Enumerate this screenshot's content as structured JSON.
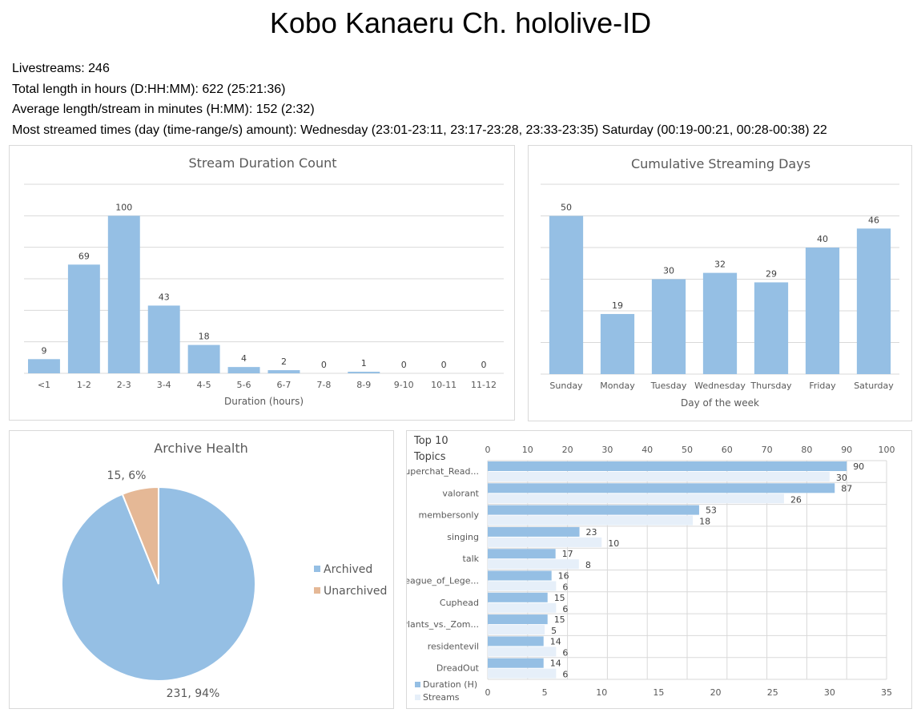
{
  "title": "Kobo Kanaeru Ch. hololive-ID",
  "stats": [
    "Livestreams: 246",
    "Total length in hours (D:HH:MM): 622 (25:21:36)",
    "Average length/stream in minutes (H:MM): 152 (2:32)",
    "Most streamed times (day (time-range/s) amount): Wednesday (23:01-23:11, 23:17-23:28, 23:33-23:35) Saturday (00:19-00:21, 00:28-00:38) 22"
  ],
  "colors": {
    "blue": "#95bfe4",
    "light_blue": "#e6eff9",
    "orange": "#e5b896",
    "grid": "#d9d9d9"
  },
  "chart_data": [
    {
      "type": "bar",
      "title": "Stream Duration Count",
      "xlabel": "Duration (hours)",
      "ylabel": "",
      "categories": [
        "<1",
        "1-2",
        "2-3",
        "3-4",
        "4-5",
        "5-6",
        "6-7",
        "7-8",
        "8-9",
        "9-10",
        "10-11",
        "11-12"
      ],
      "values": [
        9,
        69,
        100,
        43,
        18,
        4,
        2,
        0,
        1,
        0,
        0,
        0
      ],
      "ylim": [
        0,
        120
      ],
      "grid": true
    },
    {
      "type": "bar",
      "title": "Cumulative Streaming Days",
      "xlabel": "Day of the week",
      "ylabel": "",
      "categories": [
        "Sunday",
        "Monday",
        "Tuesday",
        "Wednesday",
        "Thursday",
        "Friday",
        "Saturday"
      ],
      "values": [
        50,
        19,
        30,
        32,
        29,
        40,
        46
      ],
      "ylim": [
        0,
        60
      ],
      "grid": true
    },
    {
      "type": "pie",
      "title": "Archive Health",
      "categories": [
        "Archived",
        "Unarchived"
      ],
      "values": [
        231,
        15
      ],
      "labels": [
        "231, 94%",
        "15, 6%"
      ],
      "legend": "right"
    },
    {
      "type": "bar",
      "orientation": "horizontal",
      "title": "Top 10 Topics",
      "categories": [
        "Superchat_Read...",
        "valorant",
        "membersonly",
        "singing",
        "talk",
        "League_of_Lege...",
        "Cuphead",
        "Plants_vs._Zom...",
        "residentevil",
        "DreadOut"
      ],
      "series": [
        {
          "name": "Duration (H)",
          "values": [
            90,
            87,
            53,
            23,
            17,
            16,
            15,
            15,
            14,
            14
          ],
          "axis": "top",
          "xlim": [
            0,
            100
          ]
        },
        {
          "name": "Streams",
          "values": [
            30,
            26,
            18,
            10,
            8,
            6,
            6,
            5,
            6,
            6
          ],
          "axis": "bottom",
          "xlim": [
            0,
            35
          ]
        }
      ],
      "top_ticks": [
        "0",
        "10",
        "20",
        "30",
        "40",
        "50",
        "60",
        "70",
        "80",
        "90",
        "100"
      ],
      "bottom_ticks": [
        "0",
        "5",
        "10",
        "15",
        "20",
        "25",
        "30",
        "35"
      ],
      "legend": "bottom-left",
      "grid": true
    }
  ]
}
